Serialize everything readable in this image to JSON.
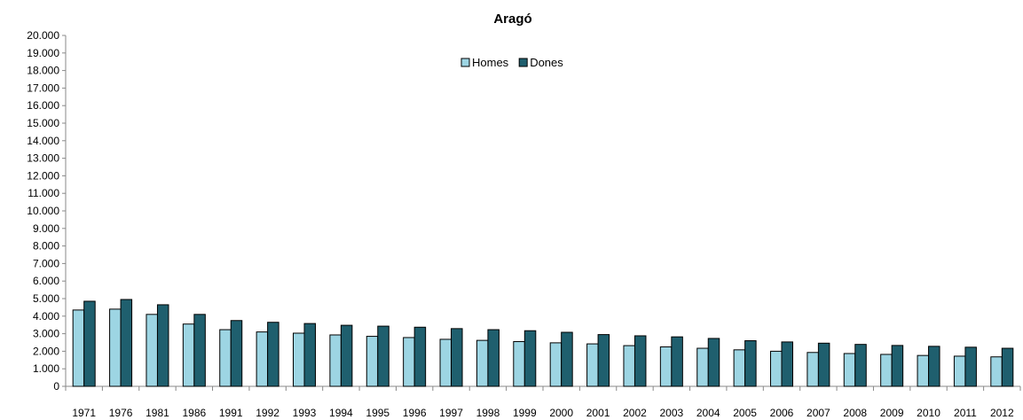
{
  "chart_data": {
    "type": "bar",
    "title": "Aragó",
    "xlabel": "",
    "ylabel": "",
    "ylim": [
      0,
      20000
    ],
    "ytick_step": 1000,
    "ytick_labels": [
      "0",
      "1.000",
      "2.000",
      "3.000",
      "4.000",
      "5.000",
      "6.000",
      "7.000",
      "8.000",
      "9.000",
      "10.000",
      "11.000",
      "12.000",
      "13.000",
      "14.000",
      "15.000",
      "16.000",
      "17.000",
      "18.000",
      "19.000",
      "20.000"
    ],
    "categories": [
      "1971",
      "1976",
      "1981",
      "1986",
      "1991",
      "1992",
      "1993",
      "1994",
      "1995",
      "1996",
      "1997",
      "1998",
      "1999",
      "2000",
      "2001",
      "2002",
      "2003",
      "2004",
      "2005",
      "2006",
      "2007",
      "2008",
      "2009",
      "2010",
      "2011",
      "2012"
    ],
    "series": [
      {
        "name": "Homes",
        "color": "#9dd5e3",
        "values": [
          4350,
          4400,
          4100,
          3550,
          3230,
          3100,
          3030,
          2930,
          2850,
          2780,
          2680,
          2620,
          2550,
          2480,
          2420,
          2320,
          2250,
          2170,
          2080,
          2000,
          1930,
          1870,
          1820,
          1760,
          1720,
          1680
        ]
      },
      {
        "name": "Dones",
        "color": "#1f5f6e",
        "values": [
          4850,
          4950,
          4650,
          4100,
          3750,
          3650,
          3580,
          3480,
          3430,
          3370,
          3290,
          3230,
          3170,
          3080,
          2950,
          2880,
          2820,
          2730,
          2600,
          2530,
          2460,
          2390,
          2330,
          2280,
          2230,
          2170
        ]
      }
    ],
    "legend_position": "top-center",
    "grid": false
  }
}
